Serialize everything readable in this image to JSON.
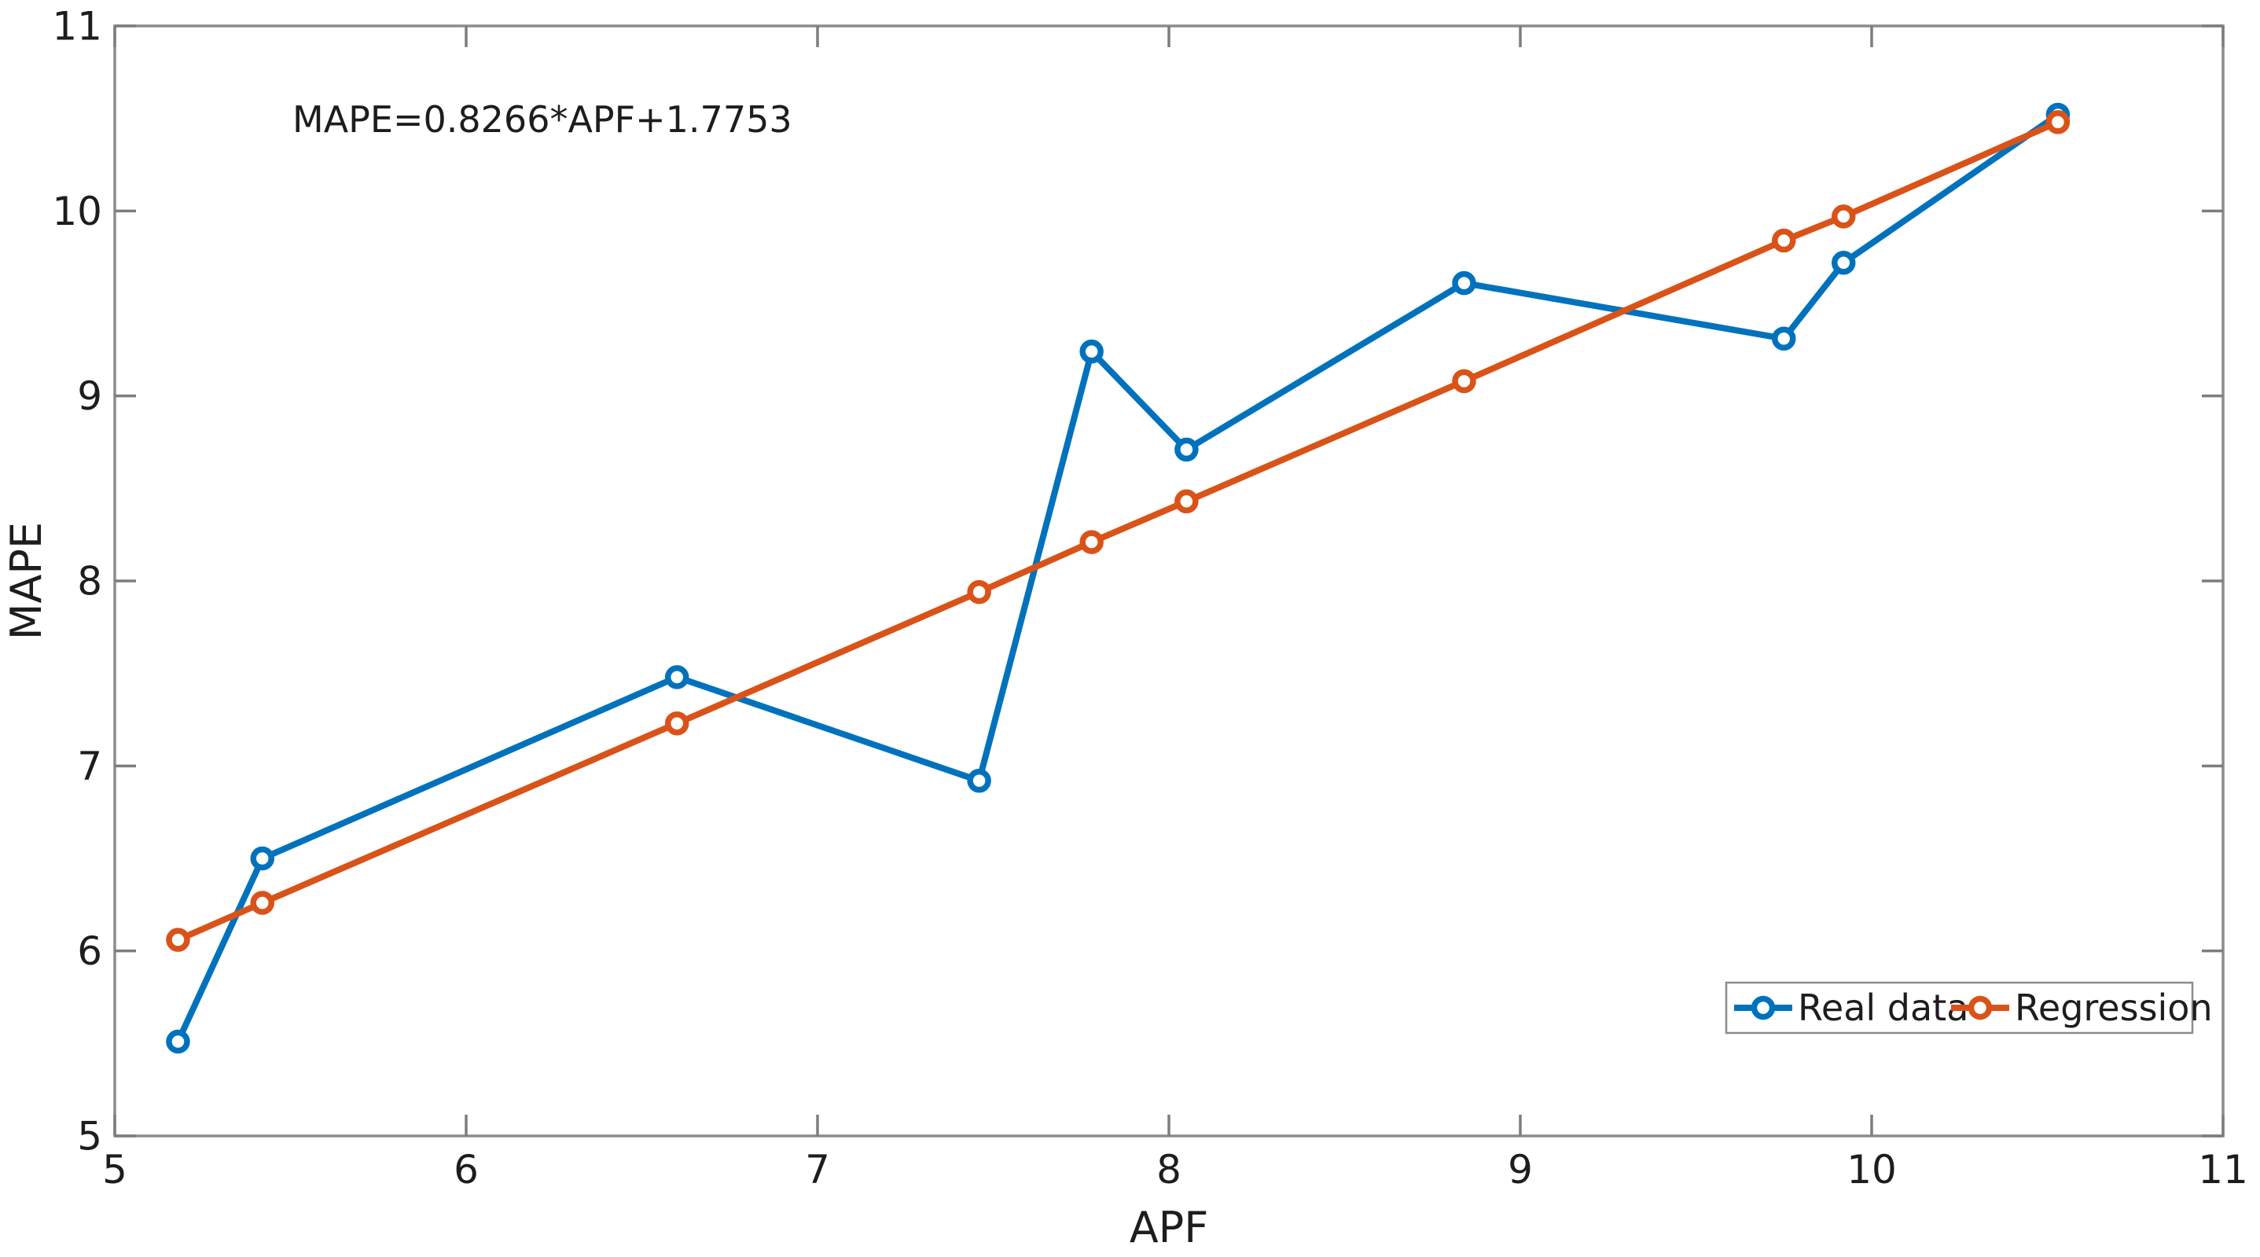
{
  "chart_data": {
    "type": "line",
    "title": "",
    "xlabel": "APF",
    "ylabel": "MAPE",
    "xlim": [
      5,
      11
    ],
    "ylim": [
      5,
      11
    ],
    "xticks": [
      5,
      6,
      7,
      8,
      9,
      10,
      11
    ],
    "yticks": [
      5,
      6,
      7,
      8,
      9,
      10,
      11
    ],
    "grid": "off",
    "box": "on",
    "tick_direction": "in",
    "annotation": "MAPE=0.8266*APF+1.7753",
    "legend_position": "inside-bottom-right",
    "x": [
      5.18,
      5.42,
      6.6,
      7.46,
      7.78,
      8.05,
      8.84,
      9.75,
      9.92,
      10.53
    ],
    "series": [
      {
        "name": "Real data",
        "color": "#0072BD",
        "marker": "circle",
        "values": [
          5.51,
          6.5,
          7.48,
          6.92,
          9.24,
          8.71,
          9.61,
          9.31,
          9.72,
          10.52
        ]
      },
      {
        "name": "Regression",
        "color": "#D95319",
        "marker": "circle",
        "values": [
          6.06,
          6.26,
          7.23,
          7.94,
          8.21,
          8.43,
          9.08,
          9.84,
          9.97,
          10.48
        ]
      }
    ],
    "regression_slope": 0.8266,
    "regression_intercept": 1.7753,
    "colors": {
      "axis": "#8c8c8c",
      "tick": "#7d7d7d",
      "text": "#1d1d1d",
      "background": "#ffffff"
    }
  }
}
